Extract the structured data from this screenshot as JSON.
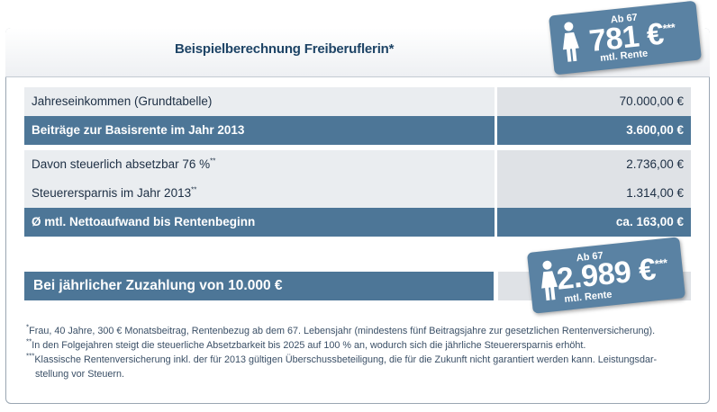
{
  "title": "Beispielberechnung Freiberuflerin*",
  "badge_top": {
    "ab": "Ab 67",
    "amount": "781 €",
    "stars": "***",
    "mtl": "mtl. Rente"
  },
  "rows": [
    {
      "label": "Jahreseinkommen (Grundtabelle)",
      "sup": "",
      "value": "70.000,00 €",
      "style": "light"
    },
    {
      "label": "Beiträge zur Basisrente im Jahr 2013",
      "sup": "",
      "value": "3.600,00 €",
      "style": "dark"
    },
    {
      "label": "Davon steuerlich absetzbar 76 %",
      "sup": "**",
      "value": "2.736,00 €",
      "style": "light"
    },
    {
      "label": "Steuerersparnis im Jahr 2013",
      "sup": "**",
      "value": "1.314,00 €",
      "style": "light"
    },
    {
      "label": "Ø mtl. Nettoaufwand bis Rentenbeginn",
      "sup": "",
      "value": "ca. 163,00 €",
      "style": "dark"
    }
  ],
  "zuzahlung": {
    "label": "Bei jährlicher Zuzahlung von 10.000 €"
  },
  "badge_bottom": {
    "ab": "Ab 67",
    "amount": "2.989 €",
    "stars": "***",
    "mtl": "mtl. Rente"
  },
  "footnotes": [
    {
      "mark": "*",
      "text": "Frau, 40 Jahre, 300 € Monatsbeitrag, Rentenbezug ab dem 67. Lebensjahr (mindestens fünf Beitragsjahre zur gesetzlichen Rentenversicherung)."
    },
    {
      "mark": "**",
      "text": "In den Folgejahren steigt die steuerliche Absetzbarkeit bis 2025 auf 100 % an, wodurch sich die jährliche Steuerersparnis erhöht."
    },
    {
      "mark": "***",
      "text": "Klassische Rentenversicherung inkl. der für 2013 gültigen Überschussbeteiligung, die für die Zukunft nicht garantiert werden kann. Leistungsdar-",
      "cont": "stellung vor Steuern."
    }
  ],
  "icons": {
    "person": "woman-figure-icon"
  },
  "colors": {
    "accent": "#4d7697",
    "badge": "#5a82a3",
    "light_row": "#eaedf0",
    "value_cell": "#dfe2e6"
  }
}
